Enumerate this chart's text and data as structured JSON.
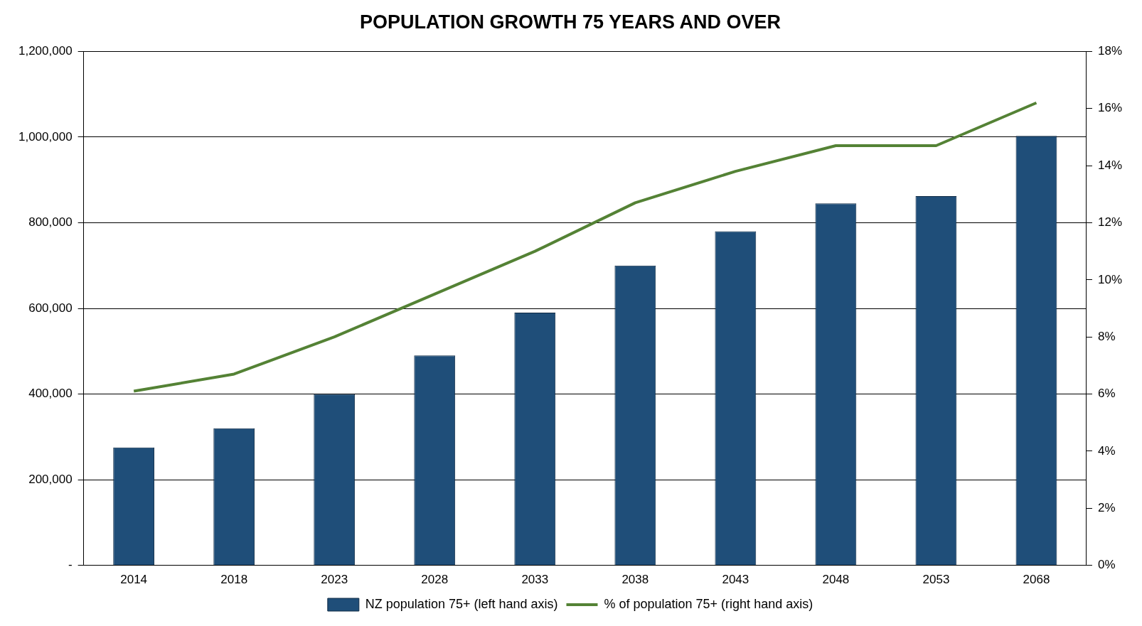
{
  "chart_data": {
    "type": "bar",
    "title": "POPULATION GROWTH 75 YEARS AND OVER",
    "categories": [
      "2014",
      "2018",
      "2023",
      "2028",
      "2033",
      "2038",
      "2043",
      "2048",
      "2053",
      "2068"
    ],
    "series": [
      {
        "name": "NZ population 75+ (left hand axis)",
        "color": "#1f4e79",
        "axis": "y",
        "values": [
          275000,
          320000,
          400000,
          490000,
          590000,
          700000,
          780000,
          845000,
          862000,
          1003000
        ]
      },
      {
        "name": "% of population 75+ (right hand axis)",
        "color": "#548235",
        "type": "line",
        "axis": "y2",
        "values": [
          6.1,
          6.7,
          8.0,
          9.5,
          11.0,
          12.7,
          13.8,
          14.7,
          14.7,
          16.2
        ]
      }
    ],
    "ylim": [
      0,
      1200000
    ],
    "yticks": [
      {
        "value": 0,
        "label": "-"
      },
      {
        "value": 200000,
        "label": "200,000"
      },
      {
        "value": 400000,
        "label": "400,000"
      },
      {
        "value": 600000,
        "label": "600,000"
      },
      {
        "value": 800000,
        "label": "800,000"
      },
      {
        "value": 1000000,
        "label": "1,000,000"
      },
      {
        "value": 1200000,
        "label": "1,200,000"
      }
    ],
    "y2lim": [
      0,
      18
    ],
    "y2ticks": [
      {
        "value": 0,
        "label": "0%"
      },
      {
        "value": 2,
        "label": "2%"
      },
      {
        "value": 4,
        "label": "4%"
      },
      {
        "value": 6,
        "label": "6%"
      },
      {
        "value": 8,
        "label": "8%"
      },
      {
        "value": 10,
        "label": "10%"
      },
      {
        "value": 12,
        "label": "12%"
      },
      {
        "value": 14,
        "label": "14%"
      },
      {
        "value": 16,
        "label": "16%"
      },
      {
        "value": 18,
        "label": "18%"
      }
    ],
    "grid": "y",
    "legend": "bottom",
    "marker": "none"
  }
}
